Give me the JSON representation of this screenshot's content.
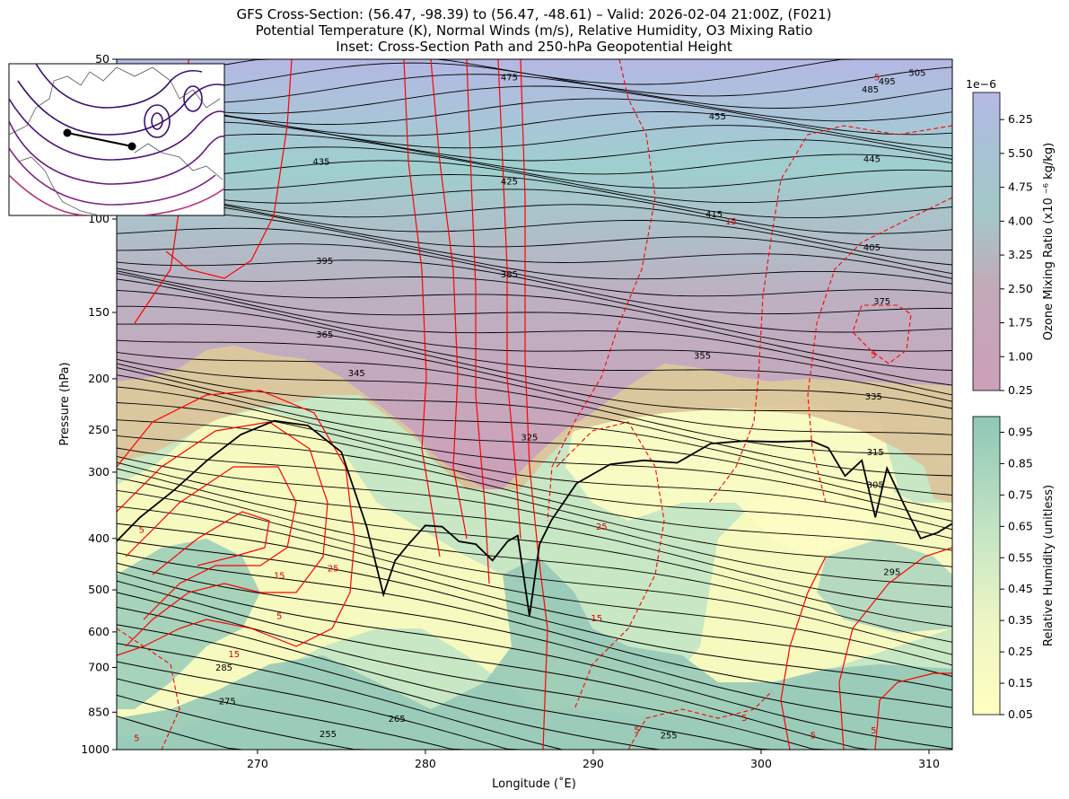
{
  "figure": {
    "title_line1": "GFS Cross-Section: (56.47, -98.39) to (56.47, -48.61) – Valid: 2026-02-04 21:00Z, (F021)",
    "title_line2": "Potential Temperature (K), Normal Winds (m/s), Relative Humidity, O3 Mixing Ratio",
    "title_line3": "Inset: Cross-Section Path and 250-hPa Geopotential Height"
  },
  "chart_data": {
    "type": "contour",
    "xlabel": "Longitude (˚E)",
    "ylabel": "Pressure (hPa)",
    "xlim": [
      261.61,
      311.39
    ],
    "ylim": [
      1000,
      50
    ],
    "y_scale": "log",
    "x_ticks": [
      270,
      280,
      290,
      300,
      310
    ],
    "y_ticks": [
      1000,
      850,
      700,
      600,
      500,
      400,
      300,
      250,
      200,
      150,
      100,
      50
    ],
    "colors": {
      "theta": "#000000",
      "normal_wind": "#ff0000",
      "rh_low": "#ffffc0",
      "rh_high": "#8fc7b8",
      "o3_low": "#cc9fb8",
      "o3_high": "#b6b9e6"
    },
    "theta_labels": [
      {
        "text": "255",
        "lon": 274.2,
        "p": 935
      },
      {
        "text": "255",
        "lon": 294.5,
        "p": 940
      },
      {
        "text": "265",
        "lon": 278.3,
        "p": 875
      },
      {
        "text": "275",
        "lon": 268.2,
        "p": 810
      },
      {
        "text": "285",
        "lon": 268.0,
        "p": 700
      },
      {
        "text": "295",
        "lon": 307.8,
        "p": 462
      },
      {
        "text": "305",
        "lon": 306.8,
        "p": 317
      },
      {
        "text": "315",
        "lon": 306.8,
        "p": 275
      },
      {
        "text": "325",
        "lon": 286.2,
        "p": 258
      },
      {
        "text": "335",
        "lon": 306.7,
        "p": 216
      },
      {
        "text": "345",
        "lon": 275.9,
        "p": 195
      },
      {
        "text": "355",
        "lon": 296.5,
        "p": 181
      },
      {
        "text": "365",
        "lon": 274.0,
        "p": 165
      },
      {
        "text": "375",
        "lon": 307.2,
        "p": 143
      },
      {
        "text": "385",
        "lon": 285.0,
        "p": 127
      },
      {
        "text": "395",
        "lon": 274.0,
        "p": 120
      },
      {
        "text": "405",
        "lon": 306.6,
        "p": 113
      },
      {
        "text": "415",
        "lon": 297.2,
        "p": 98
      },
      {
        "text": "425",
        "lon": 285.0,
        "p": 85
      },
      {
        "text": "435",
        "lon": 273.8,
        "p": 78
      },
      {
        "text": "445",
        "lon": 306.6,
        "p": 77
      },
      {
        "text": "455",
        "lon": 297.4,
        "p": 64
      },
      {
        "text": "475",
        "lon": 285.0,
        "p": 54
      },
      {
        "text": "485",
        "lon": 306.5,
        "p": 57
      },
      {
        "text": "495",
        "lon": 307.5,
        "p": 55
      },
      {
        "text": "505",
        "lon": 309.3,
        "p": 53
      }
    ],
    "wind_labels": [
      {
        "text": "5",
        "lon": 263.1,
        "p": 385
      },
      {
        "text": "15",
        "lon": 271.3,
        "p": 470
      },
      {
        "text": "25",
        "lon": 274.5,
        "p": 455
      },
      {
        "text": "5",
        "lon": 271.3,
        "p": 560
      },
      {
        "text": "15",
        "lon": 268.6,
        "p": 660
      },
      {
        "text": "25",
        "lon": 290.5,
        "p": 380
      },
      {
        "text": "15",
        "lon": 290.2,
        "p": 565
      },
      {
        "text": "15",
        "lon": 298.2,
        "p": 101
      },
      {
        "text": "5",
        "lon": 306.7,
        "p": 180
      },
      {
        "text": "5",
        "lon": 306.9,
        "p": 54
      },
      {
        "text": "5",
        "lon": 299.0,
        "p": 870
      },
      {
        "text": "5",
        "lon": 303.1,
        "p": 940
      },
      {
        "text": "5",
        "lon": 306.7,
        "p": 920
      },
      {
        "text": "5",
        "lon": 262.8,
        "p": 950
      },
      {
        "text": "5",
        "lon": 292.6,
        "p": 918
      }
    ],
    "colorbar_o3": {
      "label": "Ozone Mixing Ratio (x10 ⁻⁶ kg/kg)",
      "exponent": "1e−6",
      "ticks": [
        "6.25",
        "5.50",
        "4.75",
        "4.00",
        "3.25",
        "2.50",
        "1.75",
        "1.00",
        "0.25"
      ],
      "range": [
        0.25,
        6.85
      ]
    },
    "colorbar_rh": {
      "label": "Relative Humidity (unitless)",
      "ticks": [
        "0.95",
        "0.85",
        "0.75",
        "0.65",
        "0.55",
        "0.45",
        "0.35",
        "0.25",
        "0.15",
        "0.05"
      ],
      "range": [
        0.05,
        1.0
      ]
    },
    "tropopause_2pvu": [
      [
        261.6,
        405
      ],
      [
        263.0,
        365
      ],
      [
        265.0,
        325
      ],
      [
        267.0,
        285
      ],
      [
        269.0,
        255
      ],
      [
        271.0,
        240
      ],
      [
        273.0,
        245
      ],
      [
        275.0,
        275
      ],
      [
        276.5,
        380
      ],
      [
        277.5,
        510
      ],
      [
        278.2,
        440
      ],
      [
        279.0,
        410
      ],
      [
        280.0,
        378
      ],
      [
        281.0,
        380
      ],
      [
        282.0,
        405
      ],
      [
        283.0,
        410
      ],
      [
        284.0,
        440
      ],
      [
        284.9,
        405
      ],
      [
        285.5,
        395
      ],
      [
        286.2,
        560
      ],
      [
        286.8,
        410
      ],
      [
        287.5,
        370
      ],
      [
        289.0,
        315
      ],
      [
        291.0,
        290
      ],
      [
        293.0,
        285
      ],
      [
        295.0,
        288
      ],
      [
        297.0,
        265
      ],
      [
        299.0,
        262
      ],
      [
        301.0,
        263
      ],
      [
        303.0,
        262
      ],
      [
        304.0,
        270
      ],
      [
        305.0,
        305
      ],
      [
        306.0,
        285
      ],
      [
        306.8,
        365
      ],
      [
        307.5,
        295
      ],
      [
        308.5,
        345
      ],
      [
        309.5,
        400
      ],
      [
        310.5,
        390
      ],
      [
        311.4,
        375
      ]
    ]
  }
}
